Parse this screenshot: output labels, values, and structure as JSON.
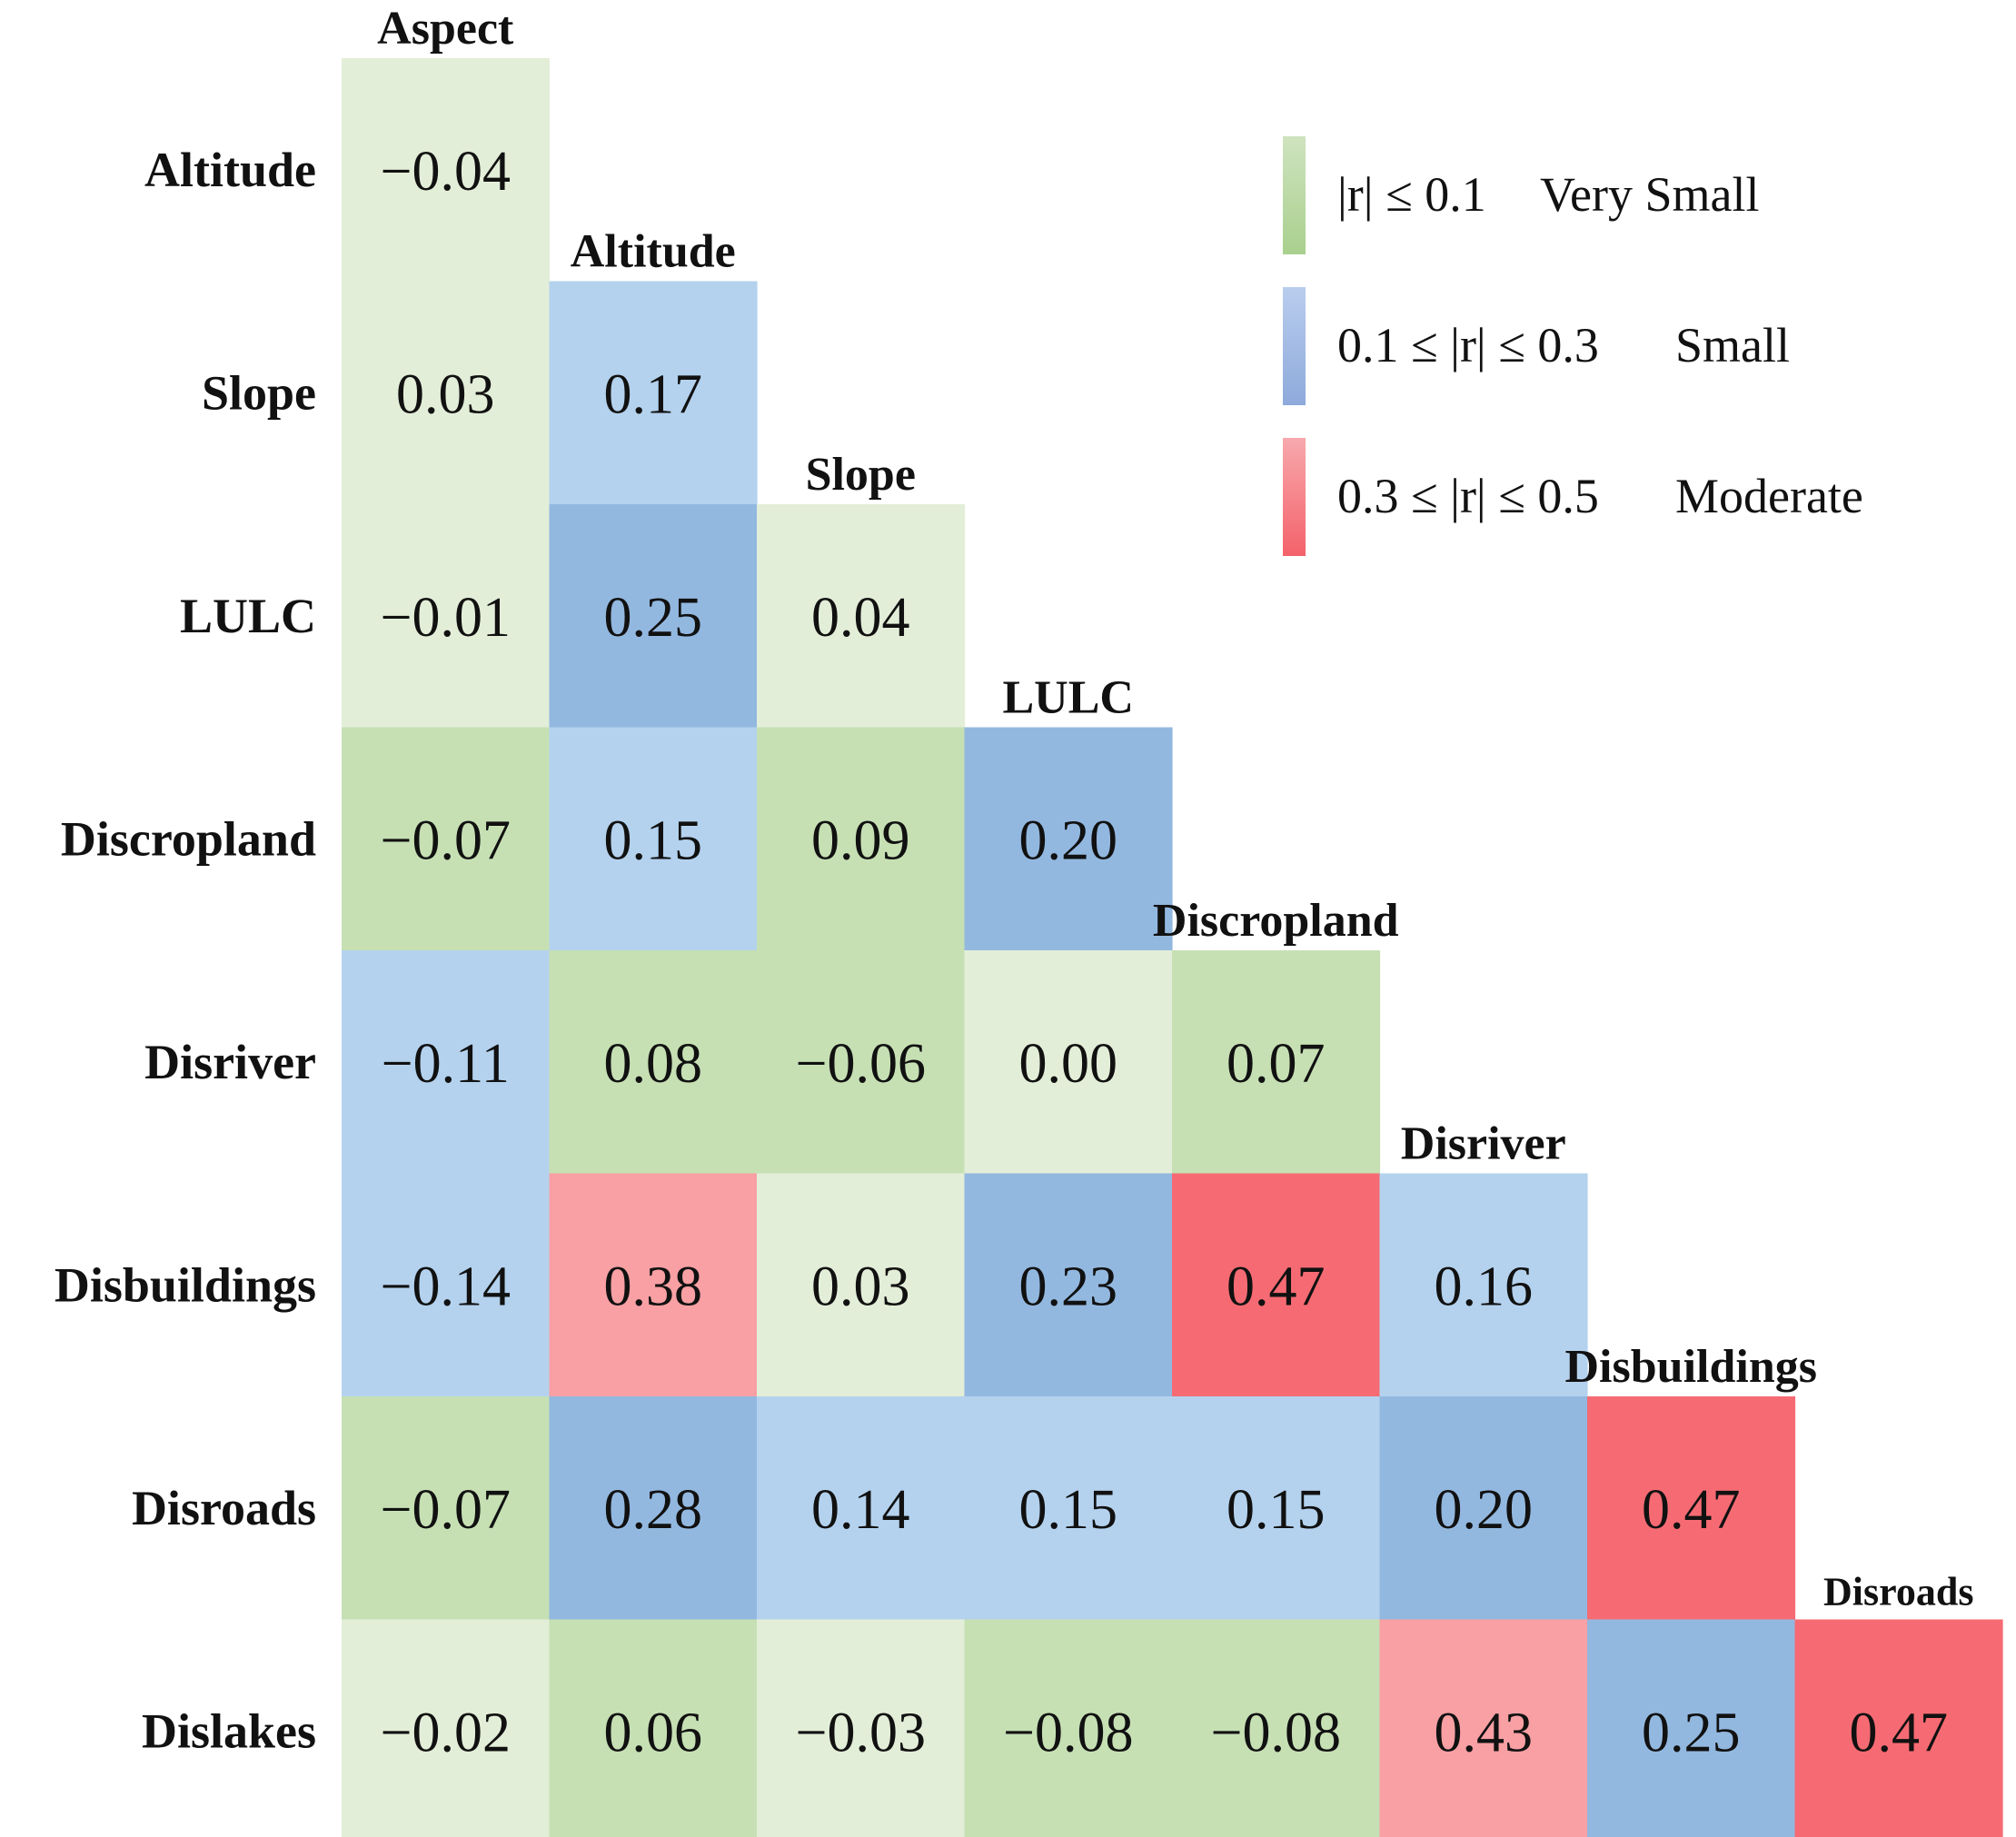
{
  "chart_data": {
    "type": "heatmap",
    "title": "",
    "row_labels": [
      "Altitude",
      "Slope",
      "LULC",
      "Discropland",
      "Disriver",
      "Disbuildings",
      "Disroads",
      "Dislakes"
    ],
    "col_labels": [
      "Aspect",
      "Altitude",
      "Slope",
      "LULC",
      "Discropland",
      "Disriver",
      "Disbuildings",
      "Disroads"
    ],
    "rows": [
      {
        "values": [
          -0.04
        ],
        "labels": [
          "−0.04"
        ]
      },
      {
        "values": [
          0.03,
          0.17
        ],
        "labels": [
          "0.03",
          "0.17"
        ]
      },
      {
        "values": [
          -0.01,
          0.25,
          0.04
        ],
        "labels": [
          "−0.01",
          "0.25",
          "0.04"
        ]
      },
      {
        "values": [
          -0.07,
          0.15,
          0.09,
          0.2
        ],
        "labels": [
          "−0.07",
          "0.15",
          "0.09",
          "0.20"
        ]
      },
      {
        "values": [
          -0.11,
          0.08,
          -0.06,
          0.0,
          0.07
        ],
        "labels": [
          "−0.11",
          "0.08",
          "−0.06",
          "0.00",
          "0.07"
        ]
      },
      {
        "values": [
          -0.14,
          0.38,
          0.03,
          0.23,
          0.47,
          0.16
        ],
        "labels": [
          "−0.14",
          "0.38",
          "0.03",
          "0.23",
          "0.47",
          "0.16"
        ]
      },
      {
        "values": [
          -0.07,
          0.28,
          0.14,
          0.15,
          0.15,
          0.2,
          0.47
        ],
        "labels": [
          "−0.07",
          "0.28",
          "0.14",
          "0.15",
          "0.15",
          "0.20",
          "0.47"
        ]
      },
      {
        "values": [
          -0.02,
          0.06,
          -0.03,
          -0.08,
          -0.08,
          0.43,
          0.25,
          0.47
        ],
        "labels": [
          "−0.02",
          "0.06",
          "−0.03",
          "−0.08",
          "−0.08",
          "0.43",
          "0.25",
          "0.47"
        ]
      }
    ],
    "legend": {
      "position": "top-right",
      "entries": [
        {
          "range": "|r| ≤ 0.1",
          "label": "Very Small",
          "color": "#a9d08e"
        },
        {
          "range": "0.1 ≤ |r| ≤ 0.3",
          "label": "Small",
          "color": "#8eaadb"
        },
        {
          "range": "0.3 ≤ |r| ≤ 0.5",
          "label": "Moderate",
          "color": "#f4626a"
        }
      ]
    },
    "colors": {
      "green_light": "#e3eed8",
      "green_dark": "#c6e0b4",
      "blue_light": "#b4d2ee",
      "blue_dark": "#93b8e0",
      "red_light": "#f8a0a4",
      "red_dark": "#f66b73"
    }
  }
}
